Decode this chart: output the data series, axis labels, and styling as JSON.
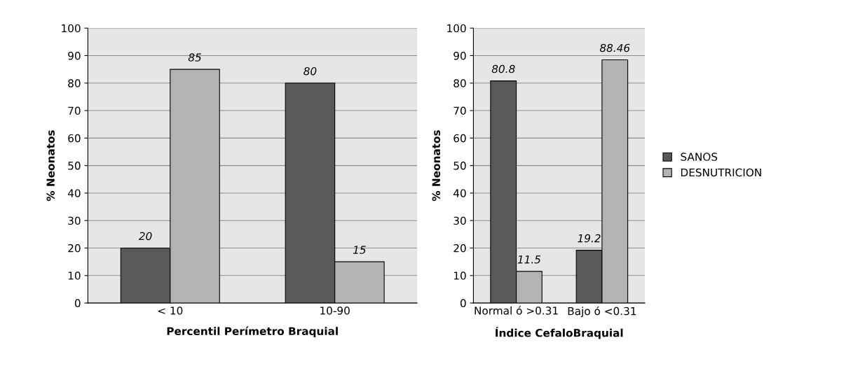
{
  "chart_data": [
    {
      "type": "bar",
      "xlabel": "Percentil Perímetro Braquial",
      "ylabel": "% Neonatos",
      "categories": [
        "< 10",
        "10-90"
      ],
      "series": [
        {
          "color": "#595959",
          "values": [
            20,
            80
          ]
        },
        {
          "color": "#b3b3b3",
          "values": [
            85,
            15
          ]
        }
      ],
      "ylim": [
        0,
        100
      ],
      "yticks": [
        0,
        10,
        20,
        30,
        40,
        50,
        60,
        70,
        80,
        90,
        100
      ],
      "grid": "y",
      "data_labels": true,
      "legend": false
    },
    {
      "type": "bar",
      "xlabel": "Índice CefaloBraquial",
      "ylabel": "% Neonatos",
      "categories": [
        "Normal ó >0.31",
        "Bajo ó <0.31"
      ],
      "series": [
        {
          "name": "SANOS",
          "color": "#595959",
          "values": [
            80.8,
            19.2
          ]
        },
        {
          "name": "DESNUTRICION",
          "color": "#b3b3b3",
          "values": [
            11.5,
            88.46
          ]
        }
      ],
      "ylim": [
        0,
        100
      ],
      "yticks": [
        0,
        10,
        20,
        30,
        40,
        50,
        60,
        70,
        80,
        90,
        100
      ],
      "grid": "y",
      "data_labels": true,
      "legend": "right"
    }
  ]
}
